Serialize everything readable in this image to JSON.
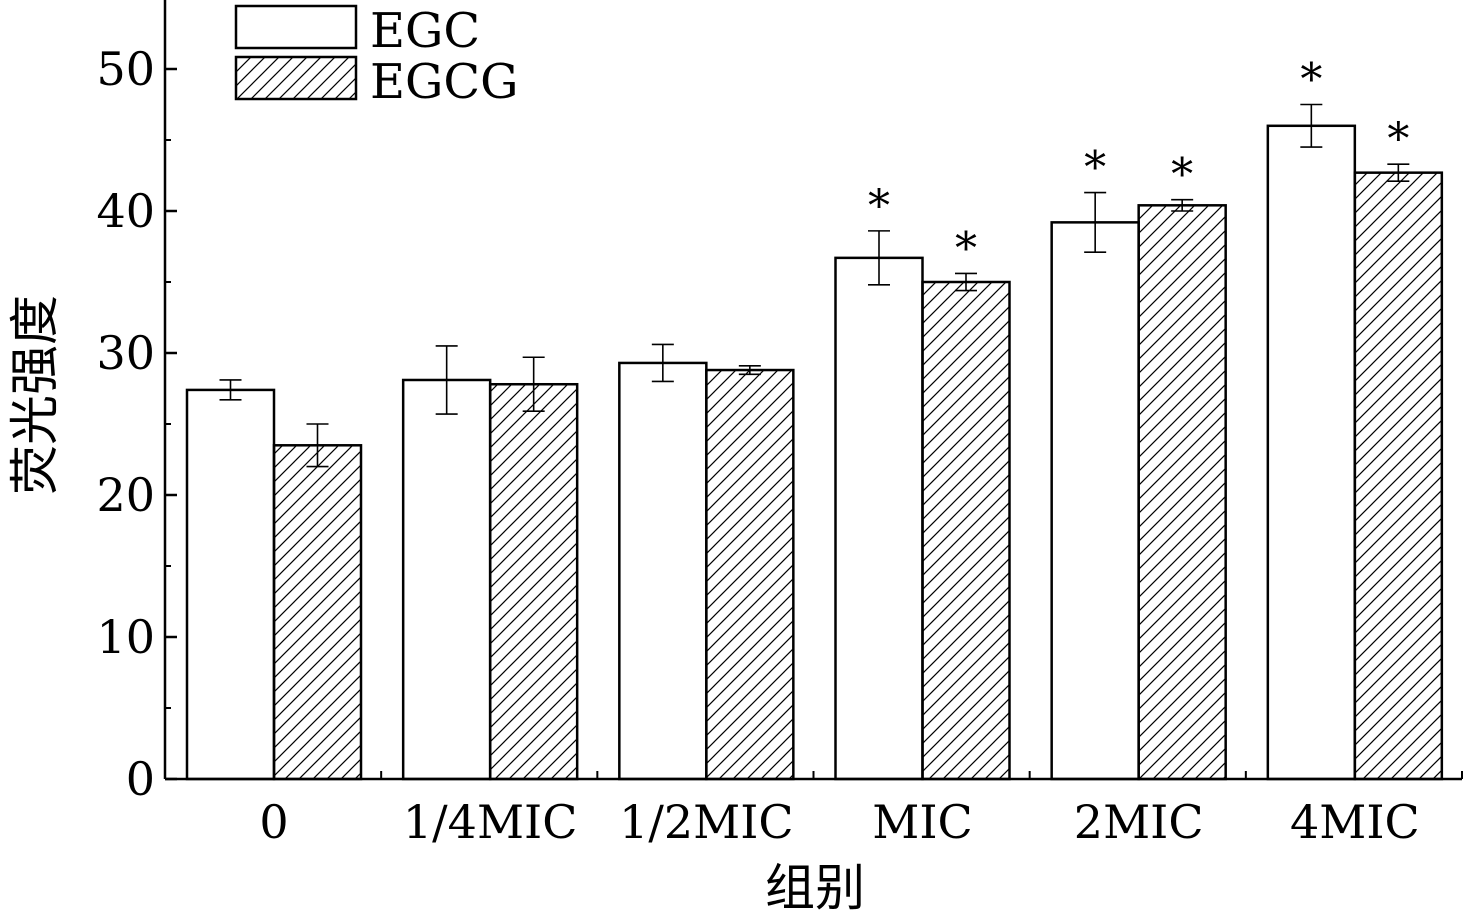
{
  "chart_data": {
    "type": "bar",
    "title": "",
    "xlabel": "组别",
    "ylabel": "荧光强度",
    "categories": [
      "0",
      "1/4MIC",
      "1/2MIC",
      "MIC",
      "2MIC",
      "4MIC"
    ],
    "series": [
      {
        "name": "EGC",
        "pattern": "solid",
        "values": [
          27.4,
          28.1,
          29.3,
          36.7,
          39.2,
          46.0
        ],
        "errors": [
          0.7,
          2.4,
          1.3,
          1.9,
          2.1,
          1.5
        ],
        "significant": [
          false,
          false,
          false,
          true,
          true,
          true
        ]
      },
      {
        "name": "EGCG",
        "pattern": "hatched",
        "values": [
          23.5,
          27.8,
          28.8,
          35.0,
          40.4,
          42.7
        ],
        "errors": [
          1.5,
          1.9,
          0.3,
          0.6,
          0.4,
          0.6
        ],
        "significant": [
          false,
          false,
          false,
          true,
          true,
          true
        ]
      }
    ],
    "yticks": [
      0,
      10,
      20,
      30,
      40,
      50
    ],
    "ylim": [
      0,
      55
    ],
    "significance_marker": "*",
    "legend_position": "top-left",
    "grid": false,
    "colors": {
      "stroke": "#000000",
      "fill": "#ffffff",
      "hatch": "#000000"
    }
  }
}
